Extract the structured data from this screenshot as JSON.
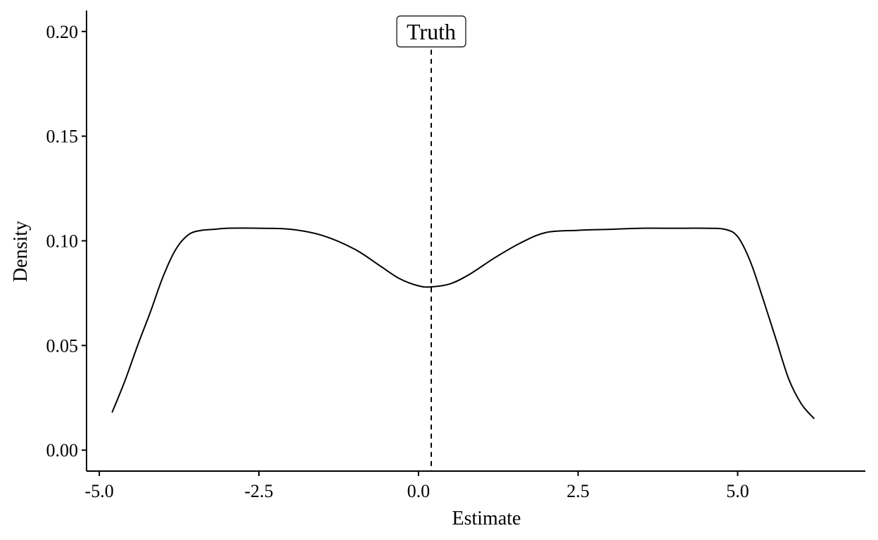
{
  "chart_data": {
    "type": "line",
    "title": "",
    "xlabel": "Estimate",
    "ylabel": "Density",
    "xlim": [
      -5.2,
      7.0
    ],
    "ylim": [
      -0.01,
      0.21
    ],
    "x_ticks": [
      -5.0,
      -2.5,
      0.0,
      2.5,
      5.0
    ],
    "x_tick_labels": [
      "-5.0",
      "-2.5",
      "0.0",
      "2.5",
      "5.0"
    ],
    "y_ticks": [
      0.0,
      0.05,
      0.1,
      0.15,
      0.2
    ],
    "y_tick_labels": [
      "0.00",
      "0.05",
      "0.10",
      "0.15",
      "0.20"
    ],
    "grid": false,
    "series": [
      {
        "x": [
          -4.8,
          -4.6,
          -4.4,
          -4.2,
          -4.0,
          -3.8,
          -3.6,
          -3.4,
          -3.2,
          -3.0,
          -2.5,
          -2.0,
          -1.5,
          -1.0,
          -0.6,
          -0.3,
          0.0,
          0.2,
          0.5,
          0.8,
          1.2,
          1.6,
          2.0,
          2.5,
          3.0,
          3.5,
          4.0,
          4.5,
          4.8,
          5.0,
          5.2,
          5.4,
          5.6,
          5.8,
          6.0,
          6.2
        ],
        "y": [
          0.018,
          0.033,
          0.05,
          0.066,
          0.083,
          0.096,
          0.103,
          0.105,
          0.1055,
          0.106,
          0.106,
          0.1055,
          0.1025,
          0.096,
          0.088,
          0.082,
          0.0785,
          0.078,
          0.0795,
          0.084,
          0.092,
          0.099,
          0.104,
          0.105,
          0.1055,
          0.106,
          0.106,
          0.106,
          0.1055,
          0.102,
          0.09,
          0.072,
          0.053,
          0.034,
          0.022,
          0.015
        ]
      }
    ],
    "reference_line": {
      "x": 0.2,
      "style": "dashed",
      "label": "Truth"
    }
  }
}
